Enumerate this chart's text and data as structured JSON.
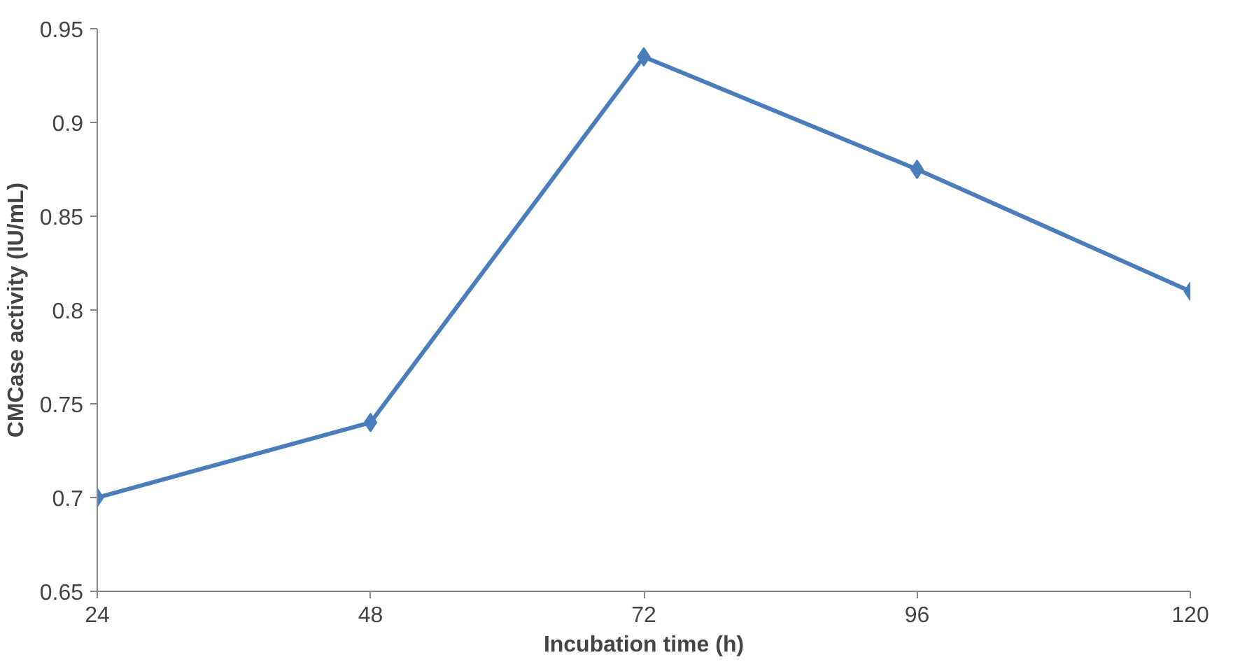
{
  "chart_data": {
    "type": "line",
    "xlabel": "Incubation time (h)",
    "ylabel": "CMCase activity (IU/mL)",
    "categories": [
      "24",
      "48",
      "72",
      "96",
      "120"
    ],
    "series": [
      {
        "color": "#4a7ebb",
        "values": [
          0.7,
          0.74,
          0.935,
          0.875,
          0.81
        ]
      }
    ],
    "ylim": [
      0.65,
      0.95
    ],
    "yticks": [
      0.65,
      0.7,
      0.75,
      0.8,
      0.85,
      0.9,
      0.95
    ],
    "grid": false,
    "marker": "diamond",
    "line_style": "solid"
  }
}
